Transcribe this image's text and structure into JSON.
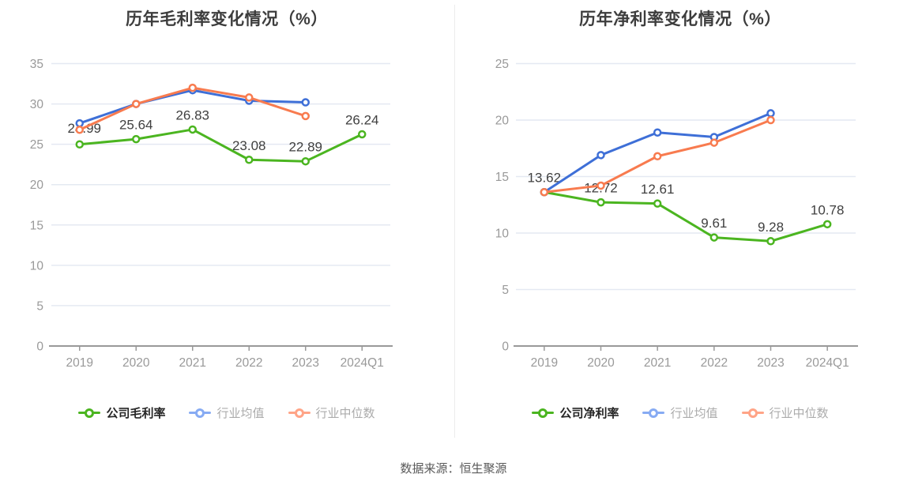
{
  "footer": {
    "source": "数据来源：恒生聚源"
  },
  "colors": {
    "company_green": "#4bb520",
    "industry_avg_blue": "#3e6fd7",
    "industry_median_orange": "#f87b4f",
    "legend_blue_light": "#87abf3",
    "legend_orange_light": "#ffa487",
    "grid": "#e4e9f2",
    "axis": "#999999",
    "tick_text": "#999999",
    "value_label": "#404040"
  },
  "chart_data": [
    {
      "type": "line",
      "title": "历年毛利率变化情况（%）",
      "categories": [
        "2019",
        "2020",
        "2021",
        "2022",
        "2023",
        "2024Q1"
      ],
      "ylim": [
        0,
        35
      ],
      "ystep": 5,
      "grid": true,
      "legend_position": "bottom",
      "series": [
        {
          "name": "公司毛利率",
          "color": "#4bb520",
          "show_labels": true,
          "values": [
            24.99,
            25.64,
            26.83,
            23.08,
            22.89,
            26.24
          ]
        },
        {
          "name": "行业均值",
          "color": "#3e6fd7",
          "legend_color": "#87abf3",
          "values": [
            27.6,
            30.0,
            31.7,
            30.4,
            30.2,
            null
          ]
        },
        {
          "name": "行业中位数",
          "color": "#f87b4f",
          "legend_color": "#ffa487",
          "values": [
            26.8,
            30.0,
            32.0,
            30.8,
            28.5,
            null
          ]
        }
      ]
    },
    {
      "type": "line",
      "title": "历年净利率变化情况（%）",
      "categories": [
        "2019",
        "2020",
        "2021",
        "2022",
        "2023",
        "2024Q1"
      ],
      "ylim": [
        0,
        25
      ],
      "ystep": 5,
      "grid": true,
      "legend_position": "bottom",
      "series": [
        {
          "name": "公司净利率",
          "color": "#4bb520",
          "show_labels": true,
          "values": [
            13.62,
            12.72,
            12.61,
            9.61,
            9.28,
            10.78
          ]
        },
        {
          "name": "行业均值",
          "color": "#3e6fd7",
          "legend_color": "#87abf3",
          "values": [
            13.62,
            16.9,
            18.9,
            18.5,
            20.6,
            null
          ]
        },
        {
          "name": "行业中位数",
          "color": "#f87b4f",
          "legend_color": "#ffa487",
          "values": [
            13.62,
            14.2,
            16.8,
            18.0,
            20.0,
            null
          ]
        }
      ]
    }
  ]
}
